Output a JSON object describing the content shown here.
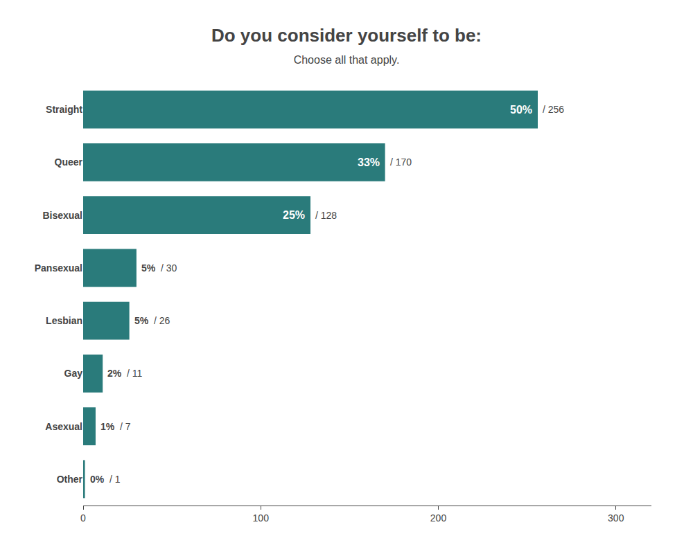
{
  "chart_data": {
    "type": "bar",
    "orientation": "horizontal",
    "title": "Do you consider yourself to be:",
    "subtitle": "Choose all that apply.",
    "categories": [
      "Straight",
      "Queer",
      "Bisexual",
      "Pansexual",
      "Lesbian",
      "Gay",
      "Asexual",
      "Other"
    ],
    "values": [
      256,
      170,
      128,
      30,
      26,
      11,
      7,
      1
    ],
    "value_labels": [
      "/ 256",
      "/ 170",
      "/ 128",
      "/ 30",
      "/ 26",
      "/ 11",
      "/ 7",
      "/ 1"
    ],
    "percentages": [
      50,
      33,
      25,
      5,
      5,
      2,
      1,
      0
    ],
    "percentage_labels": [
      "50%",
      "33%",
      "25%",
      "5%",
      "5%",
      "2%",
      "1%",
      "0%"
    ],
    "color": "#2a7b7b",
    "xlim": [
      0,
      320
    ],
    "xticks": [
      0,
      100,
      200,
      300
    ],
    "grid": false
  }
}
